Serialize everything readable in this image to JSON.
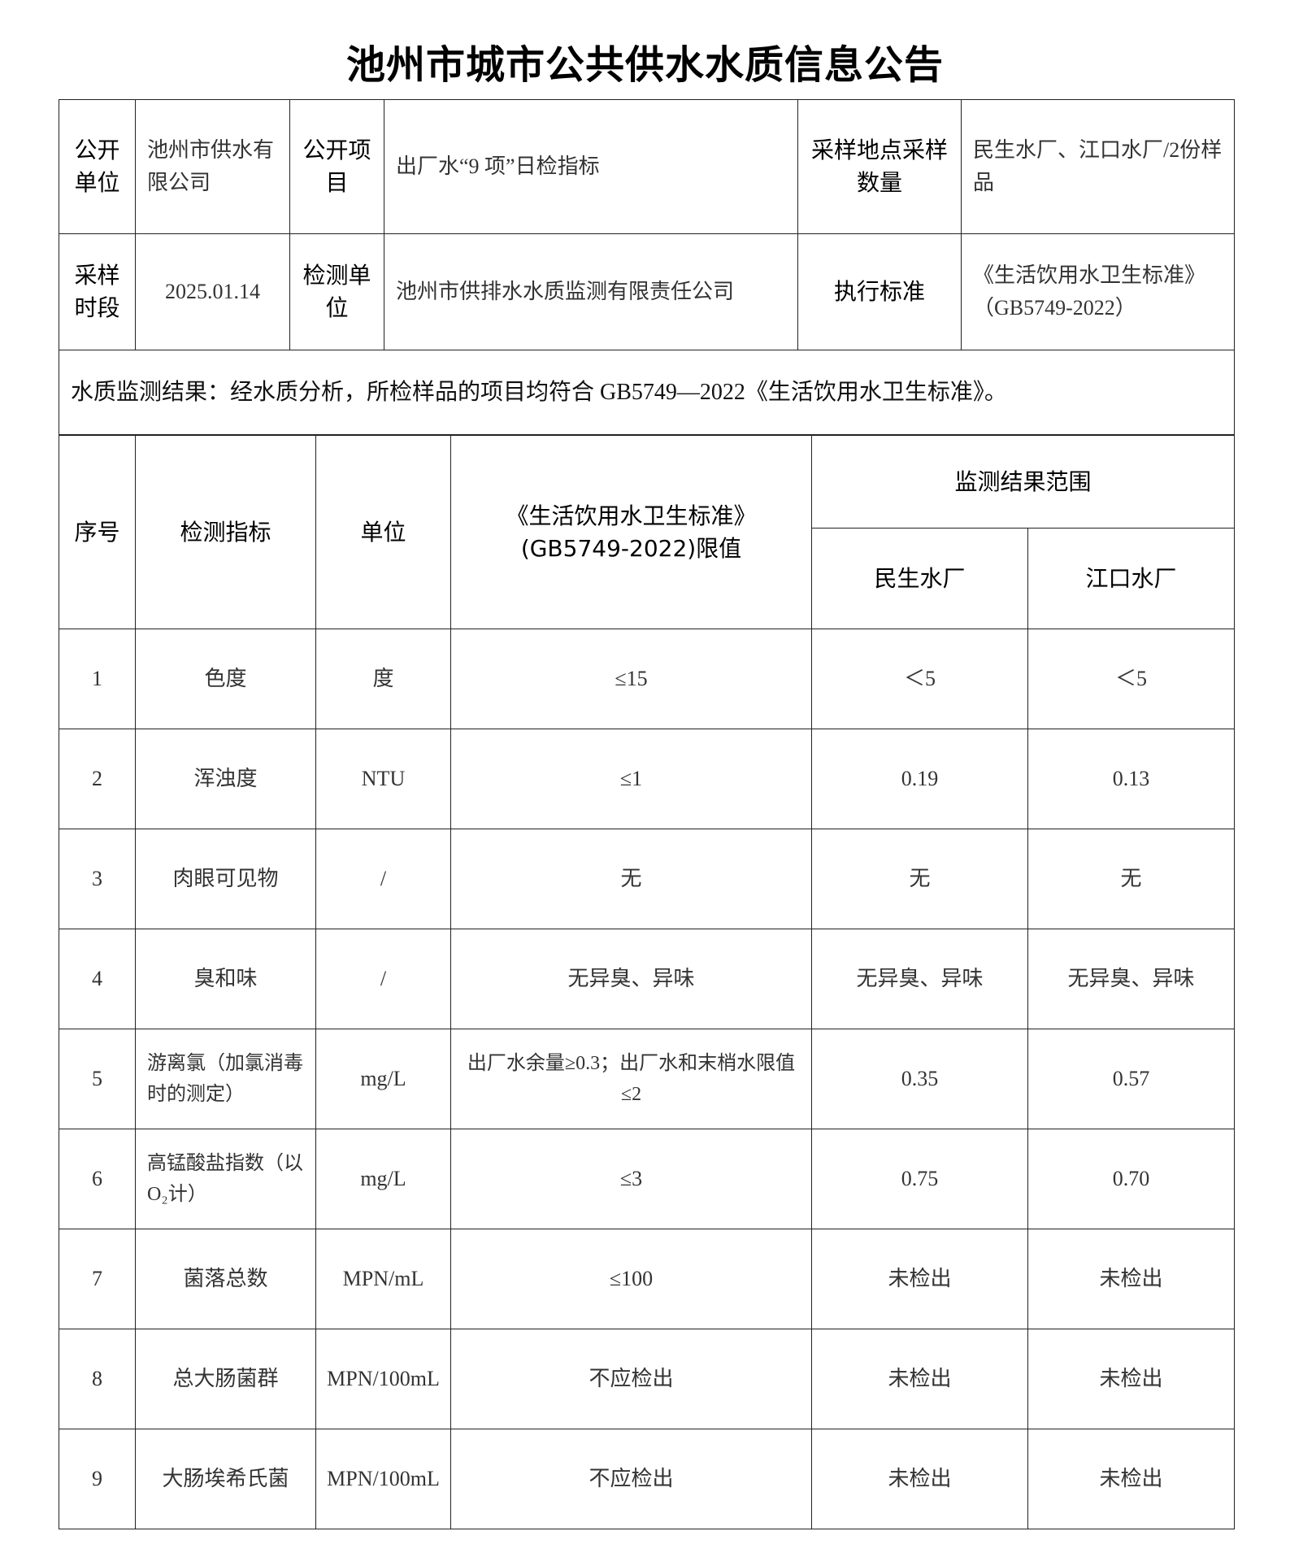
{
  "title": "池州市城市公共供水水质信息公告",
  "info": {
    "publisher_label": "公开单位",
    "publisher": "池州市供水有限公司",
    "item_label": "公开项目",
    "item": "出厂水“9 项”日检指标",
    "site_label": "采样地点采样数量",
    "site": "民生水厂、江口水厂/2份样品",
    "period_label": "采样时段",
    "period": "2025.01.14",
    "lab_label": "检测单位",
    "lab": "池州市供排水水质监测有限责任公司",
    "std_label": "执行标准",
    "std": "《生活饮用水卫生标准》（GB5749-2022）",
    "conclusion": "水质监测结果：经水质分析，所检样品的项目均符合 GB5749—2022《生活饮用水卫生标准》。"
  },
  "results": {
    "headers": {
      "no": "序号",
      "indicator": "检测指标",
      "unit": "单位",
      "limit_line1": "《生活饮用水卫生标准》",
      "limit_line2": "(GB5749-2022)限值",
      "range": "监测结果范围",
      "plant1": "民生水厂",
      "plant2": "江口水厂"
    },
    "rows": [
      {
        "no": "1",
        "indicator": "色度",
        "unit": "度",
        "limit": "≤15",
        "plant1": "＜5",
        "plant2": "＜5"
      },
      {
        "no": "2",
        "indicator": "浑浊度",
        "unit": "NTU",
        "limit": "≤1",
        "plant1": "0.19",
        "plant2": "0.13"
      },
      {
        "no": "3",
        "indicator": "肉眼可见物",
        "unit": "/",
        "limit": "无",
        "plant1": "无",
        "plant2": "无"
      },
      {
        "no": "4",
        "indicator": "臭和味",
        "unit": "/",
        "limit": "无异臭、异味",
        "plant1": "无异臭、异味",
        "plant2": "无异臭、异味"
      },
      {
        "no": "5",
        "indicator": "游离氯（加氯消毒时的测定）",
        "unit": "mg/L",
        "limit": "出厂水余量≥0.3；出厂水和末梢水限值≤2",
        "plant1": "0.35",
        "plant2": "0.57"
      },
      {
        "no": "6",
        "indicator": "高锰酸盐指数（以 O₂计）",
        "unit": "mg/L",
        "limit": "≤3",
        "plant1": "0.75",
        "plant2": "0.70"
      },
      {
        "no": "7",
        "indicator": "菌落总数",
        "unit": "MPN/mL",
        "limit": "≤100",
        "plant1": "未检出",
        "plant2": "未检出"
      },
      {
        "no": "8",
        "indicator": "总大肠菌群",
        "unit": "MPN/100mL",
        "limit": "不应检出",
        "plant1": "未检出",
        "plant2": "未检出"
      },
      {
        "no": "9",
        "indicator": "大肠埃希氏菌",
        "unit": "MPN/100mL",
        "limit": "不应检出",
        "plant1": "未检出",
        "plant2": "未检出"
      }
    ]
  }
}
